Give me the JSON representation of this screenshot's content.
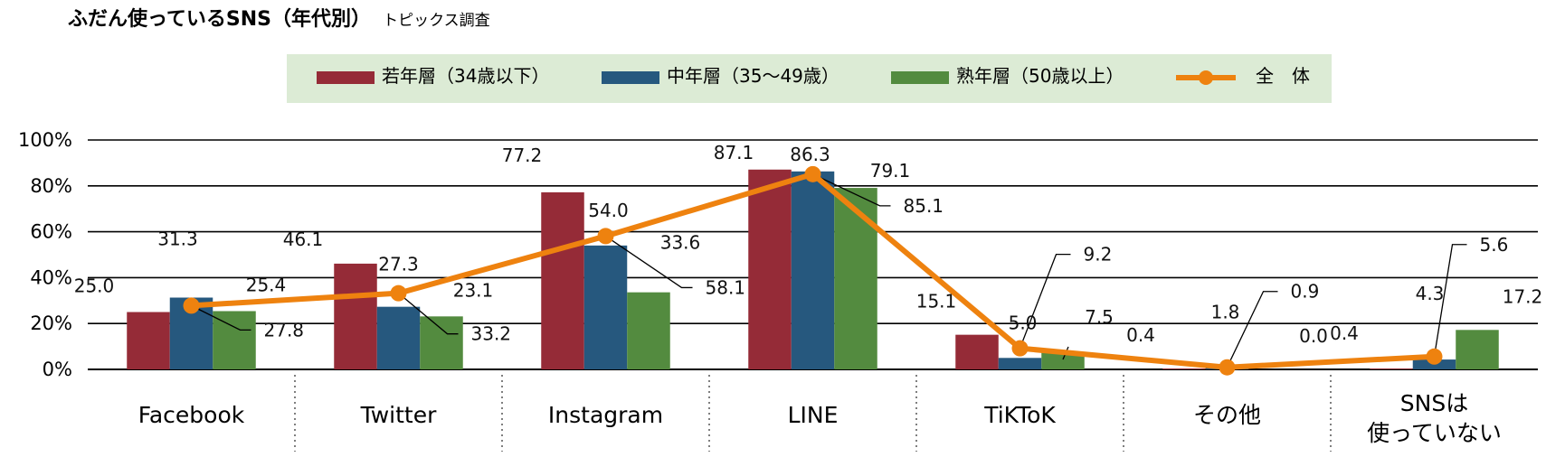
{
  "title": "ふだん使っているSNS（年代別）",
  "subtitle": "トピックス調査",
  "chart_data": {
    "type": "bar",
    "categories": [
      [
        "Facebook"
      ],
      [
        "Twitter"
      ],
      [
        "Instagram"
      ],
      [
        "LINE"
      ],
      [
        "TiKToK"
      ],
      [
        "その他"
      ],
      [
        "SNSは",
        "使っていない"
      ]
    ],
    "series": [
      {
        "name": "若年層（34歳以下）",
        "color": "#952b37",
        "values": [
          25.0,
          46.1,
          77.2,
          87.1,
          15.1,
          0.4,
          0.4
        ]
      },
      {
        "name": "中年層（35～49歳）",
        "color": "#26587e",
        "values": [
          31.3,
          27.3,
          54.0,
          86.3,
          5.0,
          1.8,
          4.3
        ]
      },
      {
        "name": "熟年層（50歳以上）",
        "color": "#538b3f",
        "values": [
          25.4,
          23.1,
          33.6,
          79.1,
          7.5,
          0.0,
          17.2
        ]
      }
    ],
    "line": {
      "name": "全　体",
      "color": "#ee820f",
      "values": [
        27.8,
        33.2,
        58.1,
        85.1,
        9.2,
        0.9,
        5.6
      ]
    },
    "y_ticks": [
      "0%",
      "20%",
      "40%",
      "60%",
      "80%",
      "100%"
    ],
    "ylim": [
      0,
      100
    ],
    "grid": true,
    "legend_position": "top"
  }
}
